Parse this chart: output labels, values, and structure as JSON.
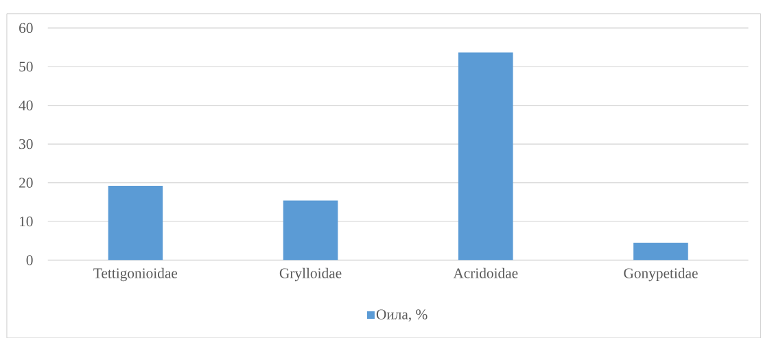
{
  "chart_data": {
    "type": "bar",
    "categories": [
      "Tettigonioidae",
      "Grylloidae",
      "Acridoidae",
      "Gonypetidae"
    ],
    "series": [
      {
        "name": "Оила, %",
        "color": "#5b9bd5",
        "values": [
          19.2,
          15.4,
          53.7,
          4.5
        ]
      }
    ],
    "ylim": [
      0,
      60
    ],
    "yticks": [
      0,
      10,
      20,
      30,
      40,
      50,
      60
    ],
    "grid": "y",
    "legend": "bottom"
  }
}
